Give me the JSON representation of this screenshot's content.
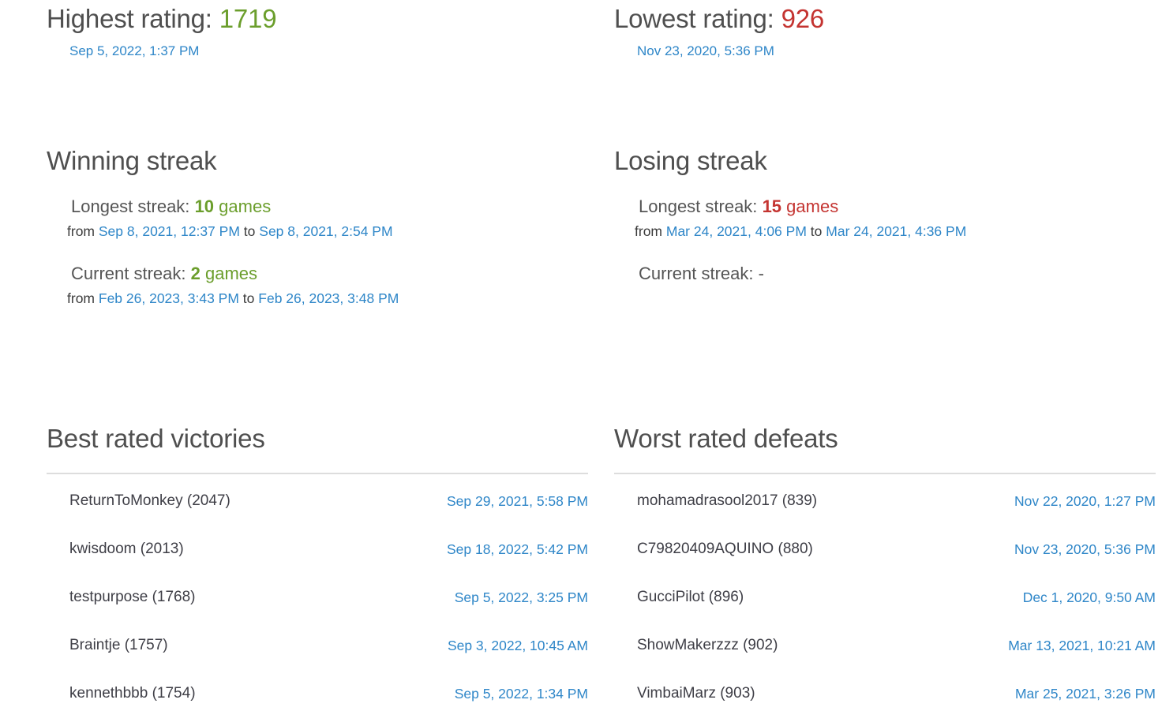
{
  "colors": {
    "positive_green": "#6b9e2c",
    "negative_red": "#c43431",
    "link_blue": "#2e86c8",
    "heading_gray": "#4f4f4f",
    "label_gray": "#555555",
    "text_dark": "#3b3b3b",
    "divider_gray": "#dddddd"
  },
  "ratings": {
    "highest": {
      "label": "Highest rating:",
      "value": "1719",
      "date": "Sep 5, 2022, 1:37 PM"
    },
    "lowest": {
      "label": "Lowest rating:",
      "value": "926",
      "date": "Nov 23, 2020, 5:36 PM"
    }
  },
  "streaks": {
    "winning": {
      "title": "Winning streak",
      "longest": {
        "label": "Longest streak:",
        "value": "10",
        "unit": "games",
        "from_label": "from",
        "from_date": "Sep 8, 2021, 12:37 PM",
        "to_label": "to",
        "to_date": "Sep 8, 2021, 2:54 PM"
      },
      "current": {
        "label": "Current streak:",
        "value": "2",
        "unit": "games",
        "from_label": "from",
        "from_date": "Feb 26, 2023, 3:43 PM",
        "to_label": "to",
        "to_date": "Feb 26, 2023, 3:48 PM"
      }
    },
    "losing": {
      "title": "Losing streak",
      "longest": {
        "label": "Longest streak:",
        "value": "15",
        "unit": "games",
        "from_label": "from",
        "from_date": "Mar 24, 2021, 4:06 PM",
        "to_label": "to",
        "to_date": "Mar 24, 2021, 4:36 PM"
      },
      "current": {
        "label": "Current streak:",
        "value": "-"
      }
    }
  },
  "lists": {
    "victories": {
      "title": "Best rated victories",
      "rows": [
        {
          "player": "ReturnToMonkey (2047)",
          "date": "Sep 29, 2021, 5:58 PM"
        },
        {
          "player": "kwisdoom (2013)",
          "date": "Sep 18, 2022, 5:42 PM"
        },
        {
          "player": "testpurpose (1768)",
          "date": "Sep 5, 2022, 3:25 PM"
        },
        {
          "player": "Braintje (1757)",
          "date": "Sep 3, 2022, 10:45 AM"
        },
        {
          "player": "kennethbbb (1754)",
          "date": "Sep 5, 2022, 1:34 PM"
        }
      ]
    },
    "defeats": {
      "title": "Worst rated defeats",
      "rows": [
        {
          "player": "mohamadrasool2017 (839)",
          "date": "Nov 22, 2020, 1:27 PM"
        },
        {
          "player": "C79820409AQUINO (880)",
          "date": "Nov 23, 2020, 5:36 PM"
        },
        {
          "player": "GucciPilot (896)",
          "date": "Dec 1, 2020, 9:50 AM"
        },
        {
          "player": "ShowMakerzzz (902)",
          "date": "Mar 13, 2021, 10:21 AM"
        },
        {
          "player": "VimbaiMarz (903)",
          "date": "Mar 25, 2021, 3:26 PM"
        }
      ]
    }
  }
}
